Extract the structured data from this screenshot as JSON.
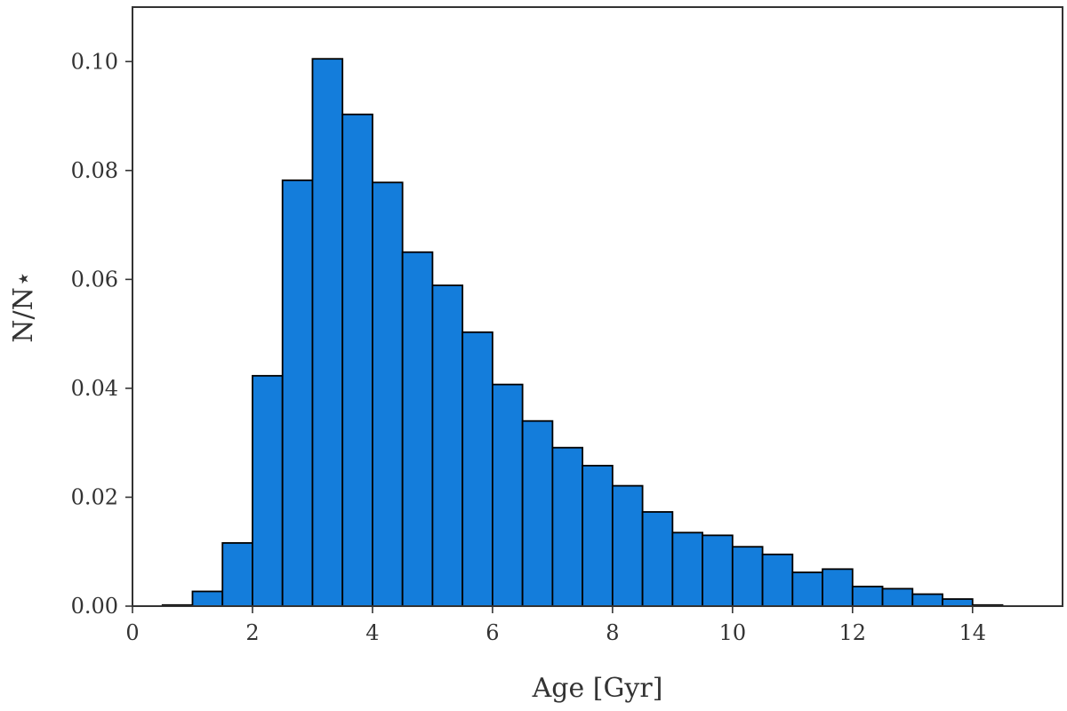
{
  "chart_data": {
    "type": "bar",
    "subtype": "histogram",
    "xlabel": "Age [Gyr]",
    "ylabel": "N/N⋆",
    "xlim": [
      0,
      15.5
    ],
    "ylim": [
      0,
      0.11
    ],
    "x_ticks": [
      0,
      2,
      4,
      6,
      8,
      10,
      12,
      14
    ],
    "x_tick_labels": [
      "0",
      "2",
      "4",
      "6",
      "8",
      "10",
      "12",
      "14"
    ],
    "y_ticks": [
      0.0,
      0.02,
      0.04,
      0.06,
      0.08,
      0.1
    ],
    "y_tick_labels": [
      "0.00",
      "0.02",
      "0.04",
      "0.06",
      "0.08",
      "0.10"
    ],
    "bin_width": 0.5,
    "bin_starts": [
      0.5,
      1.0,
      1.5,
      2.0,
      2.5,
      3.0,
      3.5,
      4.0,
      4.5,
      5.0,
      5.5,
      6.0,
      6.5,
      7.0,
      7.5,
      8.0,
      8.5,
      9.0,
      9.5,
      10.0,
      10.5,
      11.0,
      11.5,
      12.0,
      12.5,
      13.0,
      13.5,
      14.0
    ],
    "values": [
      0.0002,
      0.0027,
      0.0116,
      0.0423,
      0.0782,
      0.1005,
      0.0903,
      0.0778,
      0.065,
      0.0589,
      0.0503,
      0.0407,
      0.034,
      0.0291,
      0.0258,
      0.0221,
      0.0173,
      0.0135,
      0.013,
      0.0109,
      0.0095,
      0.0062,
      0.0068,
      0.0036,
      0.0032,
      0.0022,
      0.0013,
      0.0002
    ],
    "bar_color": "#147ddb",
    "edge_color": "#000000",
    "grid": false,
    "legend": "none"
  }
}
